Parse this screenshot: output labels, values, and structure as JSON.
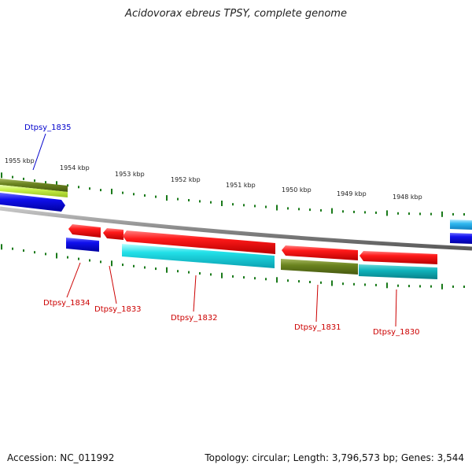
{
  "title": "Acidovorax ebreus TPSY, complete genome",
  "accession": "Accession: NC_011992",
  "stats": "Topology: circular; Length: 3,796,573 bp; Genes: 3,544",
  "colors": {
    "backbone": "#8a8a8a",
    "ticks": "#1a7a1a",
    "label_forward": "#0000cc",
    "label_reverse": "#cc0000"
  },
  "kbp_labels": [
    "1955 kbp",
    "1954 kbp",
    "1953 kbp",
    "1952 kbp",
    "1951 kbp",
    "1950 kbp",
    "1949 kbp",
    "1948 kbp"
  ],
  "genes": [
    {
      "name": "Dtpsy_1835",
      "strand": "forward"
    },
    {
      "name": "Dtpsy_1834",
      "strand": "reverse"
    },
    {
      "name": "Dtpsy_1833",
      "strand": "reverse"
    },
    {
      "name": "Dtpsy_1832",
      "strand": "reverse"
    },
    {
      "name": "Dtpsy_1831",
      "strand": "reverse"
    },
    {
      "name": "Dtpsy_1830",
      "strand": "reverse"
    }
  ]
}
